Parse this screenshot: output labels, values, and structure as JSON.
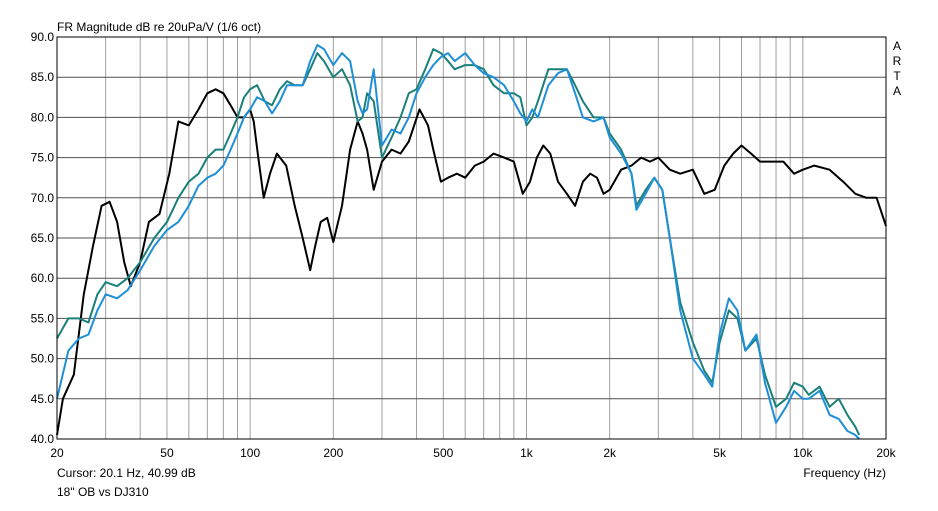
{
  "title": "FR Magnitude dB re 20uPa/V (1/6 oct)",
  "watermark": "ARTA",
  "cursor_text": "Cursor: 20.1 Hz, 40.99 dB",
  "caption": "18\" OB vs DJ310",
  "xlabel": "Frequency (Hz)",
  "chart_data": {
    "type": "line",
    "title": "FR Magnitude dB re 20uPa/V (1/6 oct)",
    "xlabel": "Frequency (Hz)",
    "ylabel": "",
    "x_scale": "log",
    "xlim": [
      20,
      20000
    ],
    "ylim": [
      40,
      90
    ],
    "grid": true,
    "y_ticks": [
      "90.0",
      "85.0",
      "80.0",
      "75.0",
      "70.0",
      "65.0",
      "60.0",
      "55.0",
      "50.0",
      "45.0",
      "40.0"
    ],
    "x_ticks": [
      {
        "v": 20,
        "label": "20"
      },
      {
        "v": 50,
        "label": "50"
      },
      {
        "v": 100,
        "label": "100"
      },
      {
        "v": 200,
        "label": "200"
      },
      {
        "v": 500,
        "label": "500"
      },
      {
        "v": 1000,
        "label": "1k"
      },
      {
        "v": 2000,
        "label": "2k"
      },
      {
        "v": 5000,
        "label": "5k"
      },
      {
        "v": 10000,
        "label": "10k"
      },
      {
        "v": 20000,
        "label": "20k"
      }
    ],
    "series": [
      {
        "color": "#000000",
        "points": [
          [
            20,
            40.5
          ],
          [
            21,
            45
          ],
          [
            23,
            48
          ],
          [
            25,
            58
          ],
          [
            27,
            64
          ],
          [
            29,
            69
          ],
          [
            31,
            69.5
          ],
          [
            33,
            67
          ],
          [
            35,
            62
          ],
          [
            37,
            59
          ],
          [
            40,
            62
          ],
          [
            43,
            67
          ],
          [
            47,
            68
          ],
          [
            51,
            73
          ],
          [
            55,
            79.5
          ],
          [
            60,
            79
          ],
          [
            65,
            81
          ],
          [
            70,
            83
          ],
          [
            75,
            83.5
          ],
          [
            80,
            83
          ],
          [
            85,
            81.5
          ],
          [
            90,
            80
          ],
          [
            95,
            80
          ],
          [
            100,
            81
          ],
          [
            103,
            79.5
          ],
          [
            107,
            75
          ],
          [
            112,
            70
          ],
          [
            118,
            73
          ],
          [
            125,
            75.5
          ],
          [
            135,
            74
          ],
          [
            145,
            69
          ],
          [
            155,
            65
          ],
          [
            165,
            61
          ],
          [
            172,
            64
          ],
          [
            180,
            67
          ],
          [
            190,
            67.5
          ],
          [
            200,
            64.5
          ],
          [
            215,
            69
          ],
          [
            230,
            76
          ],
          [
            245,
            79.5
          ],
          [
            255,
            78
          ],
          [
            265,
            76
          ],
          [
            280,
            71
          ],
          [
            300,
            74.5
          ],
          [
            325,
            76
          ],
          [
            350,
            75.5
          ],
          [
            375,
            77
          ],
          [
            410,
            81
          ],
          [
            440,
            79
          ],
          [
            460,
            76
          ],
          [
            490,
            72
          ],
          [
            520,
            72.5
          ],
          [
            560,
            73
          ],
          [
            600,
            72.5
          ],
          [
            650,
            74
          ],
          [
            700,
            74.5
          ],
          [
            760,
            75.5
          ],
          [
            830,
            75
          ],
          [
            900,
            74.5
          ],
          [
            970,
            70.5
          ],
          [
            1030,
            72
          ],
          [
            1090,
            75
          ],
          [
            1150,
            76.5
          ],
          [
            1220,
            75.5
          ],
          [
            1300,
            72
          ],
          [
            1400,
            70.5
          ],
          [
            1500,
            69
          ],
          [
            1600,
            72
          ],
          [
            1700,
            73
          ],
          [
            1800,
            72.5
          ],
          [
            1900,
            70.5
          ],
          [
            2000,
            71
          ],
          [
            2200,
            73.5
          ],
          [
            2400,
            74
          ],
          [
            2600,
            75
          ],
          [
            2800,
            74.5
          ],
          [
            3000,
            75
          ],
          [
            3300,
            73.5
          ],
          [
            3600,
            73
          ],
          [
            4000,
            73.5
          ],
          [
            4400,
            70.5
          ],
          [
            4800,
            71
          ],
          [
            5200,
            74
          ],
          [
            5600,
            75.5
          ],
          [
            6000,
            76.5
          ],
          [
            6500,
            75.5
          ],
          [
            7000,
            74.5
          ],
          [
            7500,
            74.5
          ],
          [
            8000,
            74.5
          ],
          [
            8500,
            74.5
          ],
          [
            9300,
            73
          ],
          [
            10000,
            73.5
          ],
          [
            11000,
            74
          ],
          [
            12500,
            73.5
          ],
          [
            14000,
            72
          ],
          [
            15500,
            70.5
          ],
          [
            17000,
            70
          ],
          [
            18500,
            70
          ],
          [
            20000,
            66.5
          ]
        ]
      },
      {
        "color": "#1b7f7a",
        "points": [
          [
            20,
            52.5
          ],
          [
            22,
            55
          ],
          [
            24,
            55
          ],
          [
            26,
            54.5
          ],
          [
            28,
            58
          ],
          [
            30,
            59.5
          ],
          [
            33,
            59
          ],
          [
            36,
            60
          ],
          [
            40,
            62
          ],
          [
            45,
            65
          ],
          [
            50,
            67
          ],
          [
            55,
            70
          ],
          [
            60,
            72
          ],
          [
            65,
            73
          ],
          [
            70,
            75
          ],
          [
            75,
            76
          ],
          [
            80,
            76
          ],
          [
            85,
            78
          ],
          [
            90,
            80
          ],
          [
            95,
            82.5
          ],
          [
            100,
            83.5
          ],
          [
            106,
            84
          ],
          [
            113,
            82
          ],
          [
            120,
            81.5
          ],
          [
            128,
            83.5
          ],
          [
            136,
            84.5
          ],
          [
            145,
            84
          ],
          [
            155,
            84
          ],
          [
            165,
            86
          ],
          [
            175,
            88
          ],
          [
            185,
            87
          ],
          [
            200,
            85
          ],
          [
            215,
            86
          ],
          [
            230,
            84
          ],
          [
            245,
            79.5
          ],
          [
            255,
            80
          ],
          [
            265,
            83
          ],
          [
            280,
            82
          ],
          [
            300,
            75
          ],
          [
            325,
            77.5
          ],
          [
            350,
            80
          ],
          [
            375,
            83
          ],
          [
            400,
            83.5
          ],
          [
            430,
            86
          ],
          [
            460,
            88.5
          ],
          [
            490,
            88
          ],
          [
            520,
            87
          ],
          [
            550,
            86
          ],
          [
            600,
            86.5
          ],
          [
            650,
            86.5
          ],
          [
            700,
            86
          ],
          [
            760,
            84
          ],
          [
            830,
            83
          ],
          [
            900,
            83
          ],
          [
            950,
            82.5
          ],
          [
            1000,
            79
          ],
          [
            1050,
            80
          ],
          [
            1100,
            82
          ],
          [
            1200,
            86
          ],
          [
            1300,
            86
          ],
          [
            1400,
            86
          ],
          [
            1500,
            84
          ],
          [
            1600,
            82
          ],
          [
            1750,
            80
          ],
          [
            1900,
            80
          ],
          [
            2000,
            78
          ],
          [
            2200,
            76
          ],
          [
            2400,
            73
          ],
          [
            2500,
            69
          ],
          [
            2700,
            71
          ],
          [
            2900,
            72.5
          ],
          [
            3100,
            71
          ],
          [
            3300,
            65
          ],
          [
            3600,
            57
          ],
          [
            4000,
            52
          ],
          [
            4400,
            48.5
          ],
          [
            4700,
            47
          ],
          [
            5000,
            52
          ],
          [
            5400,
            56
          ],
          [
            5800,
            55
          ],
          [
            6200,
            51
          ],
          [
            6800,
            52.5
          ],
          [
            7300,
            48
          ],
          [
            8000,
            44
          ],
          [
            8700,
            45
          ],
          [
            9300,
            47
          ],
          [
            10000,
            46.5
          ],
          [
            10500,
            45.5
          ],
          [
            11500,
            46.5
          ],
          [
            12500,
            44
          ],
          [
            13500,
            45
          ],
          [
            14500,
            43
          ],
          [
            15500,
            41.5
          ],
          [
            16000,
            40.5
          ]
        ]
      },
      {
        "color": "#1f8fd6",
        "points": [
          [
            20,
            45
          ],
          [
            22,
            51
          ],
          [
            24,
            52.5
          ],
          [
            26,
            53
          ],
          [
            28,
            56
          ],
          [
            30,
            58
          ],
          [
            33,
            57.5
          ],
          [
            36,
            58.5
          ],
          [
            40,
            61
          ],
          [
            45,
            64
          ],
          [
            50,
            66
          ],
          [
            55,
            67
          ],
          [
            60,
            69
          ],
          [
            65,
            71.5
          ],
          [
            70,
            72.5
          ],
          [
            75,
            73
          ],
          [
            80,
            74
          ],
          [
            85,
            76
          ],
          [
            90,
            78
          ],
          [
            95,
            80
          ],
          [
            100,
            81
          ],
          [
            106,
            82.5
          ],
          [
            113,
            82
          ],
          [
            120,
            80.5
          ],
          [
            128,
            82
          ],
          [
            136,
            84
          ],
          [
            145,
            84
          ],
          [
            155,
            84
          ],
          [
            165,
            87
          ],
          [
            175,
            89
          ],
          [
            185,
            88.5
          ],
          [
            200,
            86.5
          ],
          [
            215,
            88
          ],
          [
            230,
            87
          ],
          [
            245,
            82
          ],
          [
            255,
            80.5
          ],
          [
            265,
            81
          ],
          [
            280,
            86
          ],
          [
            300,
            76.5
          ],
          [
            325,
            78.5
          ],
          [
            350,
            78
          ],
          [
            375,
            80
          ],
          [
            400,
            83
          ],
          [
            430,
            85
          ],
          [
            460,
            86.5
          ],
          [
            490,
            87.5
          ],
          [
            520,
            88
          ],
          [
            550,
            87
          ],
          [
            600,
            88
          ],
          [
            650,
            86.5
          ],
          [
            700,
            85.5
          ],
          [
            760,
            85
          ],
          [
            830,
            84
          ],
          [
            900,
            82
          ],
          [
            950,
            80.5
          ],
          [
            1000,
            79.5
          ],
          [
            1050,
            81
          ],
          [
            1100,
            80
          ],
          [
            1200,
            84
          ],
          [
            1300,
            85.5
          ],
          [
            1400,
            86
          ],
          [
            1500,
            83
          ],
          [
            1600,
            80
          ],
          [
            1750,
            79.5
          ],
          [
            1900,
            80
          ],
          [
            2000,
            77.5
          ],
          [
            2200,
            75.5
          ],
          [
            2400,
            73
          ],
          [
            2500,
            68.5
          ],
          [
            2700,
            70.5
          ],
          [
            2900,
            72.5
          ],
          [
            3100,
            71
          ],
          [
            3300,
            65
          ],
          [
            3600,
            56
          ],
          [
            4000,
            50
          ],
          [
            4400,
            48
          ],
          [
            4700,
            46.5
          ],
          [
            5000,
            53
          ],
          [
            5400,
            57.5
          ],
          [
            5800,
            56
          ],
          [
            6200,
            51
          ],
          [
            6800,
            53
          ],
          [
            7300,
            47
          ],
          [
            8000,
            42
          ],
          [
            8700,
            44
          ],
          [
            9300,
            46
          ],
          [
            10000,
            45
          ],
          [
            10500,
            45
          ],
          [
            11500,
            46
          ],
          [
            12500,
            43
          ],
          [
            13500,
            42.5
          ],
          [
            14500,
            41
          ],
          [
            15500,
            40.5
          ],
          [
            16000,
            40
          ]
        ]
      }
    ]
  }
}
